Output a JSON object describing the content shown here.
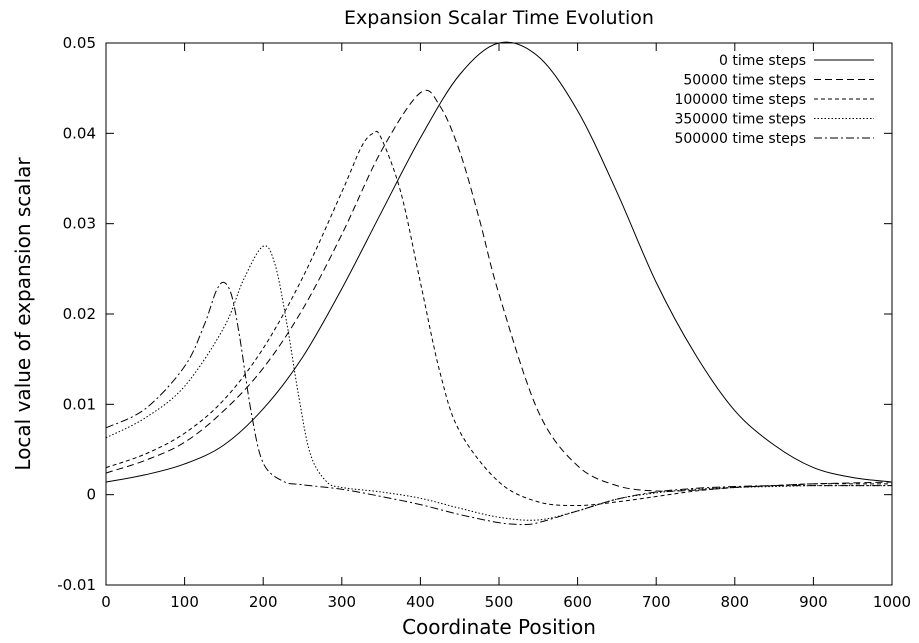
{
  "chart_data": {
    "type": "line",
    "title": "Expansion Scalar Time Evolution",
    "xlabel": "Coordinate Position",
    "ylabel": "Local value of expansion scalar",
    "xlim": [
      0,
      1000
    ],
    "ylim": [
      -0.01,
      0.05
    ],
    "xticks": [
      0,
      100,
      200,
      300,
      400,
      500,
      600,
      700,
      800,
      900,
      1000
    ],
    "xtick_labels": [
      "0",
      "100",
      "200",
      "300",
      "400",
      "500",
      "600",
      "700",
      "800",
      "900",
      "1000"
    ],
    "yticks": [
      -0.01,
      0,
      0.01,
      0.02,
      0.03,
      0.04,
      0.05
    ],
    "ytick_labels": [
      "-0.01",
      "0",
      "0.01",
      "0.02",
      "0.03",
      "0.04",
      "0.05"
    ],
    "grid": false,
    "legend_position": "top-right",
    "series": [
      {
        "name": "0 time steps",
        "dash": "solid",
        "x": [
          0,
          50,
          100,
          150,
          200,
          250,
          300,
          350,
          400,
          450,
          500,
          550,
          600,
          650,
          700,
          750,
          800,
          850,
          900,
          950,
          1000
        ],
        "y": [
          0.0014,
          0.0022,
          0.0034,
          0.0055,
          0.0095,
          0.0152,
          0.0228,
          0.0312,
          0.0395,
          0.0465,
          0.05,
          0.0485,
          0.0425,
          0.0335,
          0.0235,
          0.0155,
          0.0093,
          0.0055,
          0.003,
          0.0019,
          0.0014
        ]
      },
      {
        "name": "50000 time steps",
        "dash": "dashed",
        "x": [
          0,
          50,
          100,
          150,
          200,
          250,
          300,
          350,
          400,
          425,
          450,
          475,
          500,
          550,
          600,
          650,
          700,
          750,
          800,
          850,
          900,
          950,
          1000
        ],
        "y": [
          0.0024,
          0.0038,
          0.0058,
          0.0093,
          0.014,
          0.0205,
          0.0288,
          0.038,
          0.0445,
          0.043,
          0.038,
          0.0305,
          0.0222,
          0.0092,
          0.0032,
          0.001,
          0.0004,
          0.0005,
          0.0008,
          0.001,
          0.0012,
          0.0013,
          0.0014
        ]
      },
      {
        "name": "100000 time steps",
        "dash": "short-dashed",
        "x": [
          0,
          50,
          100,
          150,
          200,
          250,
          300,
          325,
          340,
          350,
          375,
          400,
          425,
          450,
          500,
          550,
          600,
          650,
          700,
          750,
          800,
          850,
          900,
          950,
          1000
        ],
        "y": [
          0.003,
          0.0045,
          0.0068,
          0.0105,
          0.0162,
          0.024,
          0.0335,
          0.0385,
          0.04,
          0.0395,
          0.0335,
          0.0235,
          0.0135,
          0.007,
          0.0014,
          -0.0008,
          -0.0012,
          -0.0008,
          -0.0002,
          0.0004,
          0.0008,
          0.001,
          0.0012,
          0.0012,
          0.0012
        ]
      },
      {
        "name": "350000 time steps",
        "dash": "dotted",
        "x": [
          0,
          50,
          100,
          150,
          175,
          200,
          215,
          230,
          245,
          260,
          280,
          300,
          350,
          400,
          450,
          500,
          550,
          600,
          650,
          700,
          750,
          800,
          850,
          900,
          950,
          1000
        ],
        "y": [
          0.0063,
          0.0085,
          0.012,
          0.0185,
          0.0238,
          0.0275,
          0.0255,
          0.019,
          0.011,
          0.0045,
          0.0015,
          0.0008,
          0.0003,
          -0.0004,
          -0.0015,
          -0.0025,
          -0.0028,
          -0.0018,
          -0.0005,
          0.0002,
          0.0006,
          0.0008,
          0.0009,
          0.001,
          0.001,
          0.001
        ]
      },
      {
        "name": "500000 time steps",
        "dash": "dash-dot",
        "x": [
          0,
          50,
          100,
          125,
          140,
          150,
          160,
          170,
          185,
          200,
          225,
          250,
          300,
          350,
          400,
          450,
          500,
          530,
          550,
          600,
          650,
          700,
          750,
          800,
          850,
          900,
          950,
          1000
        ],
        "y": [
          0.0074,
          0.0095,
          0.0142,
          0.0188,
          0.0225,
          0.0235,
          0.022,
          0.0175,
          0.009,
          0.0035,
          0.0015,
          0.0011,
          0.0006,
          -0.0002,
          -0.0011,
          -0.0022,
          -0.0031,
          -0.0033,
          -0.0031,
          -0.0018,
          -0.0005,
          0.0003,
          0.0007,
          0.0009,
          0.001,
          0.001,
          0.001,
          0.001
        ]
      }
    ]
  }
}
